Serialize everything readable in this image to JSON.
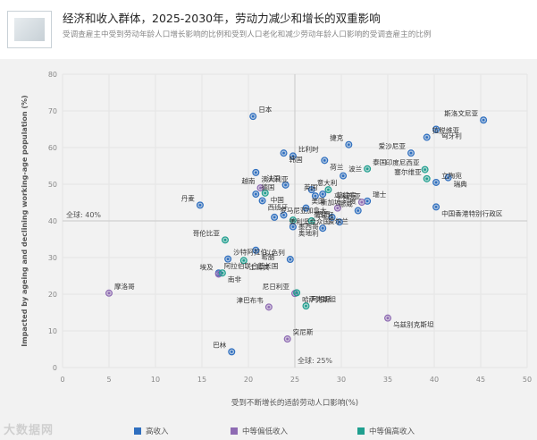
{
  "header": {
    "title": "经济和收入群体，2025-2030年，劳动力减少和增长的双重影响",
    "subtitle": "受调查雇主中受到劳动年龄人口增长影响的比例和受到人口老化和减少劳动年龄人口影响的受调查雇主的比例"
  },
  "legend": {
    "items": [
      {
        "label": "高收入",
        "color": "#2f6fbf"
      },
      {
        "label": "中等偏低收入",
        "color": "#8e6bb3"
      },
      {
        "label": "中等偏高收入",
        "color": "#1f9f8f"
      }
    ]
  },
  "watermark": "大数据网",
  "chart_data": {
    "type": "scatter",
    "xlabel": "受到不断增长的适龄劳动人口影响(%)",
    "ylabel": "Impacted by ageing and declining working-age population (%)",
    "xlim": [
      0,
      50
    ],
    "ylim": [
      0,
      80
    ],
    "xticks": [
      0,
      5,
      10,
      15,
      20,
      25,
      30,
      35,
      40,
      45,
      50
    ],
    "yticks": [
      0,
      10,
      20,
      30,
      40,
      50,
      60,
      70,
      80
    ],
    "grid": true,
    "reference_lines": [
      {
        "axis": "x",
        "value": 25,
        "label": "全球: 25%"
      },
      {
        "axis": "y",
        "value": 40,
        "label": "全球: 40%"
      }
    ],
    "groups": [
      {
        "name": "高收入",
        "color": "#2f6fbf"
      },
      {
        "name": "中等偏低收入",
        "color": "#8e6bb3"
      },
      {
        "name": "中等偏高收入",
        "color": "#1f9f8f"
      }
    ],
    "points": [
      {
        "label": "日本",
        "x": 20.5,
        "y": 68.5,
        "group": "高收入"
      },
      {
        "label": "斯洛文尼亚",
        "x": 45.3,
        "y": 67.5,
        "group": "高收入"
      },
      {
        "label": "匈牙利",
        "x": 40.2,
        "y": 65.0,
        "group": "高收入"
      },
      {
        "label": "拉脱维亚",
        "x": 39.2,
        "y": 62.8,
        "group": "高收入"
      },
      {
        "label": "捷克",
        "x": 30.8,
        "y": 60.8,
        "group": "高收入"
      },
      {
        "label": "韩国",
        "x": 23.8,
        "y": 58.5,
        "group": "高收入"
      },
      {
        "label": "比利时",
        "x": 24.8,
        "y": 57.7,
        "group": "高收入"
      },
      {
        "label": "爱沙尼亚",
        "x": 37.5,
        "y": 58.5,
        "group": "高收入"
      },
      {
        "label": "荷兰",
        "x": 28.2,
        "y": 56.5,
        "group": "高收入"
      },
      {
        "label": "泰国",
        "x": 32.8,
        "y": 54.2,
        "group": "中等偏高收入"
      },
      {
        "label": "印度尼西亚",
        "x": 39.0,
        "y": 54.0,
        "group": "中等偏高收入"
      },
      {
        "label": "澳大利亚",
        "x": 20.8,
        "y": 53.2,
        "group": "高收入"
      },
      {
        "label": "波兰",
        "x": 30.2,
        "y": 52.3,
        "group": "高收入"
      },
      {
        "label": "塞尔维亚",
        "x": 39.2,
        "y": 51.5,
        "group": "中等偏高收入"
      },
      {
        "label": "瑞典",
        "x": 41.5,
        "y": 51.8,
        "group": "高收入"
      },
      {
        "label": "立陶宛",
        "x": 40.2,
        "y": 50.5,
        "group": "高收入"
      },
      {
        "label": "法国",
        "x": 24.0,
        "y": 49.8,
        "group": "高收入"
      },
      {
        "label": "马来西亚",
        "x": 28.6,
        "y": 48.5,
        "group": "中等偏高收入"
      },
      {
        "label": "意大利",
        "x": 26.8,
        "y": 48.5,
        "group": "高收入"
      },
      {
        "label": "越南",
        "x": 21.3,
        "y": 49.0,
        "group": "中等偏低收入"
      },
      {
        "label": "中国",
        "x": 21.8,
        "y": 47.6,
        "group": "中等偏高收入"
      },
      {
        "label": "德国",
        "x": 20.8,
        "y": 47.3,
        "group": "高收入"
      },
      {
        "label": "英国",
        "x": 28.0,
        "y": 47.3,
        "group": "高收入"
      },
      {
        "label": "新加坡",
        "x": 27.2,
        "y": 46.8,
        "group": "高收入"
      },
      {
        "label": "瑞士",
        "x": 32.8,
        "y": 45.4,
        "group": "高收入"
      },
      {
        "label": "菲律宾",
        "x": 32.2,
        "y": 45.1,
        "group": "中等偏低收入"
      },
      {
        "label": "西班牙",
        "x": 21.5,
        "y": 45.5,
        "group": "高收入"
      },
      {
        "label": "美国",
        "x": 26.2,
        "y": 43.5,
        "group": "高收入"
      },
      {
        "label": "丹麦",
        "x": 14.8,
        "y": 44.3,
        "group": "高收入"
      },
      {
        "label": "中国香港特别行政区",
        "x": 40.2,
        "y": 43.8,
        "group": "高收入"
      },
      {
        "label": "印度",
        "x": 29.6,
        "y": 43.5,
        "group": "中等偏低收入"
      },
      {
        "label": "挪威",
        "x": 31.8,
        "y": 42.8,
        "group": "高收入"
      },
      {
        "label": "美利坚合众国",
        "x": 23.8,
        "y": 41.6,
        "group": "高收入"
      },
      {
        "label": "罗马尼亚",
        "x": 22.8,
        "y": 41.0,
        "group": "高收入"
      },
      {
        "label": "加拿大",
        "x": 29.0,
        "y": 41.0,
        "group": "高收入"
      },
      {
        "label": "墨西哥",
        "x": 24.8,
        "y": 40.2,
        "group": "中等偏高收入"
      },
      {
        "label": "巴西",
        "x": 26.8,
        "y": 40.0,
        "group": "中等偏高收入"
      },
      {
        "label": "葡萄牙",
        "x": 29.8,
        "y": 39.7,
        "group": "高收入"
      },
      {
        "label": "奥地利",
        "x": 24.8,
        "y": 38.4,
        "group": "高收入"
      },
      {
        "label": "爱尔兰",
        "x": 28.0,
        "y": 38.0,
        "group": "高收入"
      },
      {
        "label": "哥伦比亚",
        "x": 17.5,
        "y": 34.8,
        "group": "中等偏高收入"
      },
      {
        "label": "希腊",
        "x": 20.8,
        "y": 32.0,
        "group": "高收入"
      },
      {
        "label": "沙特阿拉伯",
        "x": 17.8,
        "y": 29.6,
        "group": "高收入"
      },
      {
        "label": "以色列",
        "x": 24.5,
        "y": 29.5,
        "group": "高收入"
      },
      {
        "label": "土耳其",
        "x": 19.5,
        "y": 29.2,
        "group": "中等偏高收入"
      },
      {
        "label": "阿拉伯联合酋长国",
        "x": 16.8,
        "y": 25.8,
        "group": "高收入"
      },
      {
        "label": "埃及",
        "x": 16.8,
        "y": 25.5,
        "group": "中等偏低收入"
      },
      {
        "label": "南非",
        "x": 17.2,
        "y": 25.8,
        "group": "中等偏高收入"
      },
      {
        "label": "摩洛哥",
        "x": 5.0,
        "y": 20.3,
        "group": "中等偏低收入"
      },
      {
        "label": "尼日利亚",
        "x": 25.0,
        "y": 20.2,
        "group": "中等偏低收入"
      },
      {
        "label": "哈萨克斯坦",
        "x": 25.2,
        "y": 20.4,
        "group": "中等偏高收入"
      },
      {
        "label": "阿根廷",
        "x": 26.2,
        "y": 16.8,
        "group": "中等偏高收入"
      },
      {
        "label": "津巴布韦",
        "x": 22.2,
        "y": 16.5,
        "group": "中等偏低收入"
      },
      {
        "label": "乌兹别克斯坦",
        "x": 35.0,
        "y": 13.5,
        "group": "中等偏低收入"
      },
      {
        "label": "突尼斯",
        "x": 24.2,
        "y": 7.8,
        "group": "中等偏低收入"
      },
      {
        "label": "巴林",
        "x": 18.2,
        "y": 4.3,
        "group": "高收入"
      }
    ]
  }
}
